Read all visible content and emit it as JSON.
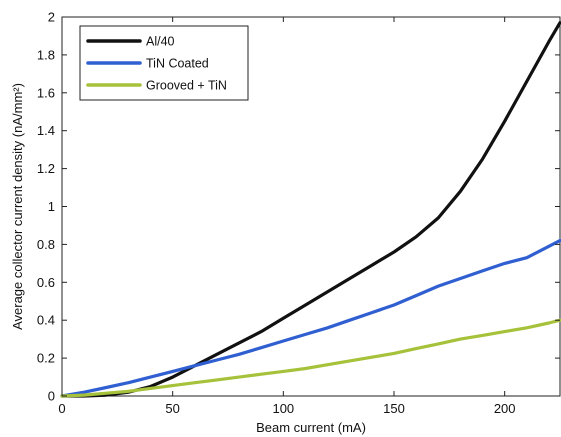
{
  "chart_data": {
    "type": "line",
    "xlabel": "Beam current (mA)",
    "ylabel": "Average collector current density (nA/mm²)",
    "xlim": [
      0,
      225
    ],
    "ylim": [
      0,
      2
    ],
    "x_ticks": [
      "0",
      "50",
      "100",
      "150",
      "200"
    ],
    "y_ticks": [
      "0",
      "0.2",
      "0.4",
      "0.6",
      "0.8",
      "1",
      "1.2",
      "1.4",
      "1.6",
      "1.8",
      "2"
    ],
    "grid": false,
    "legend_position": "top-left",
    "series": [
      {
        "name": "Al/40",
        "color": "#111111",
        "x": [
          0,
          10,
          20,
          30,
          40,
          50,
          60,
          70,
          80,
          90,
          100,
          110,
          120,
          130,
          140,
          150,
          160,
          170,
          180,
          190,
          200,
          210,
          220,
          225
        ],
        "y": [
          0,
          0,
          0.005,
          0.02,
          0.05,
          0.1,
          0.16,
          0.22,
          0.28,
          0.34,
          0.41,
          0.48,
          0.55,
          0.62,
          0.69,
          0.76,
          0.84,
          0.94,
          1.08,
          1.25,
          1.45,
          1.66,
          1.87,
          1.97
        ]
      },
      {
        "name": "TiN Coated",
        "color": "#2f5fd0",
        "x": [
          0,
          10,
          20,
          30,
          40,
          50,
          60,
          70,
          80,
          90,
          100,
          110,
          120,
          130,
          140,
          150,
          160,
          170,
          180,
          190,
          200,
          210,
          220,
          225
        ],
        "y": [
          0,
          0.02,
          0.045,
          0.07,
          0.1,
          0.13,
          0.16,
          0.19,
          0.22,
          0.255,
          0.29,
          0.325,
          0.36,
          0.4,
          0.44,
          0.48,
          0.53,
          0.58,
          0.62,
          0.66,
          0.7,
          0.73,
          0.79,
          0.82
        ]
      },
      {
        "name": "Grooved + TiN",
        "color": "#a6c23a",
        "x": [
          0,
          10,
          20,
          30,
          40,
          50,
          60,
          70,
          80,
          90,
          100,
          110,
          120,
          130,
          140,
          150,
          160,
          170,
          180,
          190,
          200,
          210,
          220,
          225
        ],
        "y": [
          0,
          0.005,
          0.015,
          0.025,
          0.04,
          0.055,
          0.07,
          0.085,
          0.1,
          0.115,
          0.13,
          0.145,
          0.165,
          0.185,
          0.205,
          0.225,
          0.25,
          0.275,
          0.3,
          0.32,
          0.34,
          0.36,
          0.385,
          0.4
        ]
      }
    ]
  }
}
